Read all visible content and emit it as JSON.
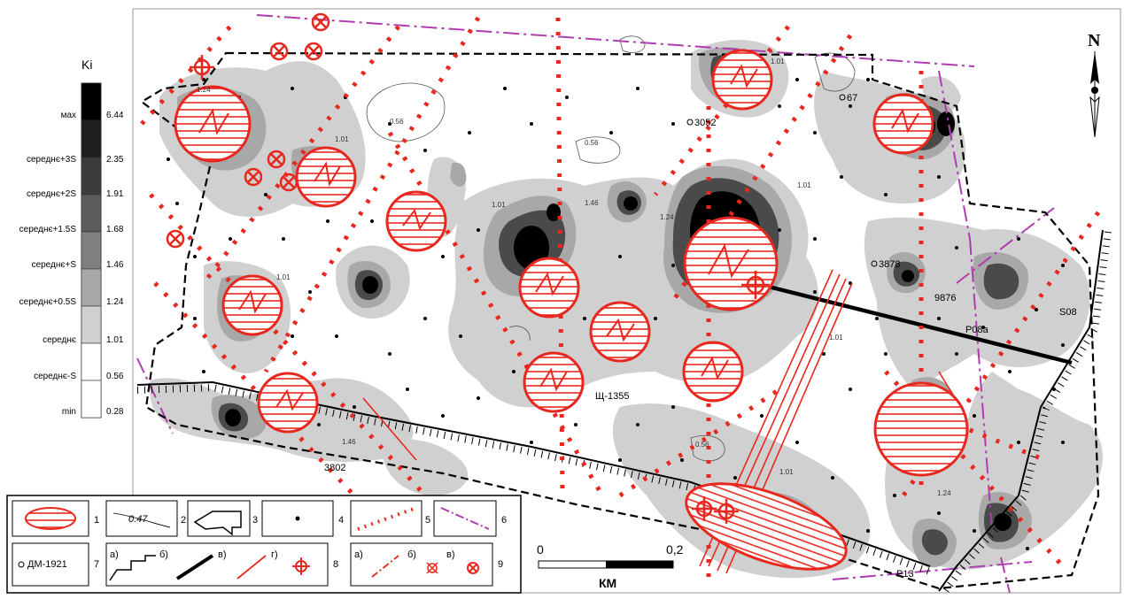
{
  "scale_legend": {
    "title": "Ki",
    "rows": [
      {
        "label": "мах",
        "value": "6.44",
        "color": "#000000"
      },
      {
        "label": "середнє+3S",
        "value": "2.35",
        "color": "#1e1e1e"
      },
      {
        "label": "середнє+2S",
        "value": "1.91",
        "color": "#3c3c3c"
      },
      {
        "label": "середнє+1.5S",
        "value": "1.68",
        "color": "#5c5c5c"
      },
      {
        "label": "середнє+S",
        "value": "1.46",
        "color": "#808080"
      },
      {
        "label": "середнє+0.5S",
        "value": "1.24",
        "color": "#a8a8a8"
      },
      {
        "label": "середнє",
        "value": "1.01",
        "color": "#d0d0d0"
      },
      {
        "label": "середнє-S",
        "value": "0.56",
        "color": "#ffffff"
      },
      {
        "label": "min",
        "value": "0.28",
        "color": "#ffffff"
      }
    ]
  },
  "north": "N",
  "scale_bar": {
    "start": "0",
    "end": "0,2",
    "unit": "КМ"
  },
  "wells": [
    {
      "id": "3052"
    },
    {
      "id": "67"
    },
    {
      "id": "3878"
    },
    {
      "id": "9876"
    },
    {
      "id": "S08"
    },
    {
      "id": "P08a"
    },
    {
      "id": "Щ-1355"
    },
    {
      "id": "3802"
    },
    {
      "id": "P13"
    }
  ],
  "contours": [
    "1.24",
    "1.01",
    "0.56",
    "1.46"
  ],
  "key": {
    "n1": "1",
    "n2": "2",
    "n3": "3",
    "n4": "4",
    "n5": "5",
    "n6": "6",
    "n7": "7",
    "n8": "8",
    "n9": "9",
    "sample_value": "0.47",
    "well_label": "ДМ-1921",
    "a": "а)",
    "b": "б)",
    "v": "в)",
    "g": "г)"
  },
  "colors": {
    "accent": "#e8281e",
    "fault": "#b03cb0"
  }
}
